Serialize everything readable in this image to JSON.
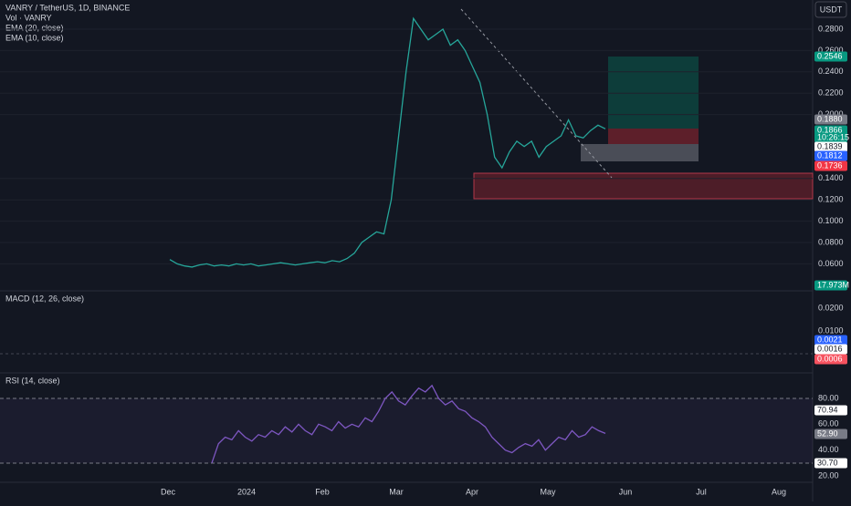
{
  "header": {
    "symbol": "VANRY / TetherUS, 1D, BINANCE",
    "lines": [
      "Vol · VANRY",
      "EMA (20, close)",
      "EMA (10, close)"
    ],
    "currency": "USDT"
  },
  "price_axis": {
    "ticks": [
      "0.2800",
      "0.2600",
      "0.2400",
      "0.2200",
      "0.2000",
      "0.1400",
      "0.1200",
      "0.1000",
      "0.0800",
      "0.0600"
    ],
    "badges": [
      {
        "text": "0.2546",
        "color": "#089981"
      },
      {
        "text": "0.1880",
        "color": "#787b86"
      },
      {
        "text": "0.1866",
        "color": "#089981"
      },
      {
        "text": "10:26:15",
        "color": "#089981"
      },
      {
        "text": "0.1839",
        "color": "#ffffff"
      },
      {
        "text": "0.1812",
        "color": "#2962ff"
      },
      {
        "text": "0.1736",
        "color": "#f23645"
      },
      {
        "text": "17.973M",
        "color": "#089981"
      }
    ]
  },
  "price": {
    "color": "#26a69a",
    "closes": [
      0.064,
      0.06,
      0.058,
      0.057,
      0.059,
      0.06,
      0.058,
      0.059,
      0.058,
      0.06,
      0.059,
      0.06,
      0.058,
      0.059,
      0.06,
      0.061,
      0.06,
      0.059,
      0.06,
      0.061,
      0.062,
      0.061,
      0.063,
      0.062,
      0.065,
      0.07,
      0.08,
      0.085,
      0.09,
      0.088,
      0.12,
      0.18,
      0.24,
      0.29,
      0.28,
      0.27,
      0.275,
      0.28,
      0.265,
      0.27,
      0.26,
      0.245,
      0.23,
      0.2,
      0.16,
      0.15,
      0.165,
      0.175,
      0.17,
      0.175,
      0.16,
      0.17,
      0.175,
      0.18,
      0.195,
      0.18,
      0.178,
      0.185,
      0.19,
      0.1866
    ]
  },
  "macd": {
    "label": "MACD (12, 26, close)",
    "ticks": [
      "0.0200",
      "0.0100"
    ],
    "badges": [
      {
        "text": "0.0021",
        "color": "#2962ff"
      },
      {
        "text": "0.0016",
        "color": "#ffffff"
      },
      {
        "text": "0.0006",
        "color": "#f7525f"
      }
    ]
  },
  "rsi": {
    "label": "RSI (14, close)",
    "color": "#7e57c2",
    "ticks": [
      "80.00",
      "60.00",
      "40.00",
      "20.00"
    ],
    "badges": [
      {
        "text": "70.94",
        "color": "#ffffff"
      },
      {
        "text": "52.90",
        "color": "#787b86"
      },
      {
        "text": "30.70",
        "color": "#ffffff"
      }
    ],
    "values": [
      30,
      45,
      50,
      48,
      55,
      50,
      47,
      52,
      50,
      55,
      52,
      58,
      54,
      60,
      55,
      52,
      60,
      58,
      55,
      62,
      57,
      60,
      58,
      65,
      62,
      70,
      80,
      85,
      78,
      75,
      82,
      88,
      85,
      90,
      80,
      75,
      78,
      72,
      70,
      65,
      62,
      58,
      50,
      45,
      40,
      38,
      42,
      45,
      43,
      48,
      40,
      45,
      50,
      48,
      55,
      50,
      52,
      58,
      55,
      52.9
    ]
  },
  "time_axis": [
    "Dec",
    "2024",
    "Feb",
    "Mar",
    "Apr",
    "May",
    "Jun",
    "Jul",
    "Aug"
  ]
}
